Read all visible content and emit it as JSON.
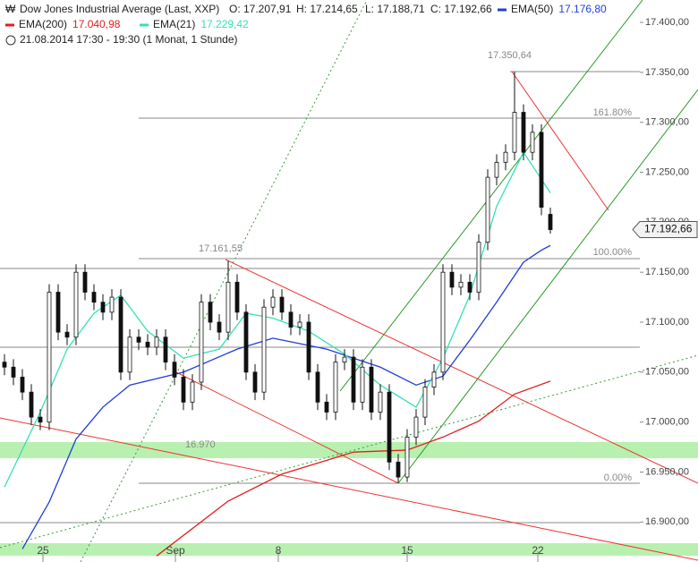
{
  "chart_data": {
    "type": "candlestick",
    "header": {
      "title": "Dow Jones Industrial Average (Last, XXP)",
      "ohlc": [
        "O: 17.207,91",
        "H: 17.214,65",
        "L: 17.188,71",
        "C: 17.192,66"
      ],
      "period": "21.08.2014 17:30 - 19:30 (1 Monat, 1 Stunde)"
    },
    "last_price_label": "17.192,66",
    "annotations": [
      "17.350,64",
      "161.80%",
      "17.161,55",
      "100.00%",
      "16.970",
      "0.00%"
    ],
    "candles": {
      "x": [
        0,
        1,
        2,
        3,
        4,
        5,
        6,
        7,
        8,
        9,
        10,
        11,
        12,
        13,
        14,
        15,
        16,
        17,
        18,
        19,
        20,
        21,
        22,
        23,
        24,
        25,
        26,
        27,
        28,
        29,
        30,
        31,
        32,
        33,
        34,
        35,
        36,
        37,
        38,
        39,
        40,
        41,
        42,
        43,
        44,
        45,
        46,
        47,
        48,
        49,
        50,
        51,
        52,
        53,
        54,
        55,
        56,
        57,
        58,
        59,
        60,
        61
      ],
      "open": [
        17060,
        17055,
        17045,
        17030,
        17005,
        17000,
        17130,
        17090,
        17085,
        17150,
        17130,
        17120,
        17110,
        17125,
        17050,
        17085,
        17080,
        17075,
        17085,
        17060,
        17045,
        17020,
        17040,
        17120,
        17100,
        17090,
        17140,
        17110,
        17050,
        17030,
        17115,
        17125,
        17110,
        17095,
        17100,
        17050,
        17020,
        17010,
        17060,
        17065,
        17020,
        17055,
        17010,
        17030,
        16960,
        16945,
        16985,
        17005,
        17035,
        17050,
        17150,
        17135,
        17140,
        17130,
        17180,
        17245,
        17260,
        17270,
        17310,
        17270,
        17290,
        17207.91
      ],
      "high": [
        17068,
        17063,
        17053,
        17038,
        17013,
        17138,
        17138,
        17098,
        17158,
        17158,
        17138,
        17128,
        17133,
        17133,
        17093,
        17093,
        17088,
        17093,
        17093,
        17068,
        17053,
        17048,
        17128,
        17128,
        17108,
        17161.55,
        17148,
        17118,
        17058,
        17123,
        17133,
        17133,
        17118,
        17108,
        17108,
        17058,
        17028,
        17068,
        17073,
        17073,
        17063,
        17063,
        17038,
        17038,
        16968,
        16993,
        17013,
        17043,
        17058,
        17158,
        17158,
        17148,
        17148,
        17188,
        17253,
        17268,
        17278,
        17350.64,
        17318,
        17298,
        17298,
        17214.65
      ],
      "low": [
        17047,
        17037,
        17022,
        16997,
        16992,
        16992,
        17082,
        17077,
        17077,
        17122,
        17112,
        17102,
        17102,
        17042,
        17042,
        17072,
        17067,
        17067,
        17052,
        17037,
        17012,
        17012,
        17032,
        17092,
        17082,
        17082,
        17102,
        17042,
        17022,
        17022,
        17107,
        17102,
        17087,
        17087,
        17042,
        17012,
        17002,
        17002,
        17052,
        17012,
        17012,
        17002,
        17002,
        16952,
        16939,
        16940,
        16977,
        16997,
        17027,
        17042,
        17127,
        17127,
        17122,
        17122,
        17172,
        17237,
        17252,
        17262,
        17262,
        17262,
        17207,
        17188.71
      ],
      "close": [
        17055,
        17045,
        17030,
        17005,
        17000,
        17130,
        17090,
        17085,
        17150,
        17130,
        17120,
        17110,
        17125,
        17050,
        17085,
        17080,
        17075,
        17085,
        17060,
        17045,
        17020,
        17040,
        17120,
        17100,
        17090,
        17140,
        17110,
        17050,
        17030,
        17115,
        17125,
        17110,
        17095,
        17100,
        17050,
        17020,
        17010,
        17060,
        17065,
        17020,
        17055,
        17010,
        17030,
        16960,
        16945,
        16985,
        17005,
        17035,
        17050,
        17150,
        17135,
        17140,
        17130,
        17180,
        17245,
        17260,
        17270,
        17310,
        17270,
        17290,
        17215,
        17192.66
      ]
    },
    "series": [
      {
        "name": "EMA(50)",
        "last_label": "17.176,80",
        "color": "#1f3fd8",
        "x": [
          2,
          5,
          8,
          11,
          14,
          20,
          26,
          30,
          36,
          42,
          46,
          49,
          52,
          55,
          58,
          60,
          61
        ],
        "values": [
          16873,
          16920,
          16983,
          17015,
          17037,
          17050,
          17073,
          17084,
          17073,
          17055,
          17037,
          17046,
          17082,
          17120,
          17160,
          17172,
          17176.8
        ]
      },
      {
        "name": "EMA(200)",
        "last_label": "17.040,98",
        "color": "#e02020",
        "x": [
          17,
          25,
          31,
          39,
          45,
          49,
          53,
          57,
          61
        ],
        "values": [
          16866,
          16921,
          16948,
          16970,
          16972,
          16985,
          17001,
          17028,
          17040.98
        ]
      },
      {
        "name": "EMA(21)",
        "last_label": "17.229,42",
        "color": "#35e0b8",
        "x": [
          0,
          4,
          7,
          10,
          13,
          16,
          20,
          24,
          27,
          30,
          34,
          38,
          42,
          46,
          49,
          52,
          55,
          58,
          60,
          61
        ],
        "values": [
          16935,
          17010,
          17073,
          17109,
          17127,
          17091,
          17064,
          17073,
          17109,
          17104,
          17091,
          17068,
          17037,
          17015,
          17064,
          17127,
          17216,
          17270,
          17243,
          17229.42
        ]
      }
    ],
    "xlim": [
      -0.5,
      71
    ],
    "xticks": [
      {
        "value": 4.3,
        "label": "25"
      },
      {
        "value": 19.1,
        "label": "Sep"
      },
      {
        "value": 30.6,
        "label": "8"
      },
      {
        "value": 45,
        "label": "15"
      },
      {
        "value": 59.6,
        "label": "22"
      }
    ],
    "ylim": [
      16860,
      17422.4
    ],
    "yticks": [
      {
        "value": 16900,
        "label": "16.900,00"
      },
      {
        "value": 16950,
        "label": "16.950,00"
      },
      {
        "value": 17000,
        "label": "17.000,00"
      },
      {
        "value": 17050,
        "label": "17.050,00"
      },
      {
        "value": 17100,
        "label": "17.100,00"
      },
      {
        "value": 17150,
        "label": "17.150,00"
      },
      {
        "value": 17200,
        "label": "17.200,00"
      },
      {
        "value": 17250,
        "label": "17.250,00"
      },
      {
        "value": 17300,
        "label": "17.300,00"
      },
      {
        "value": 17350,
        "label": "17.350,00"
      },
      {
        "value": 17400,
        "label": "17.400,00"
      }
    ]
  }
}
